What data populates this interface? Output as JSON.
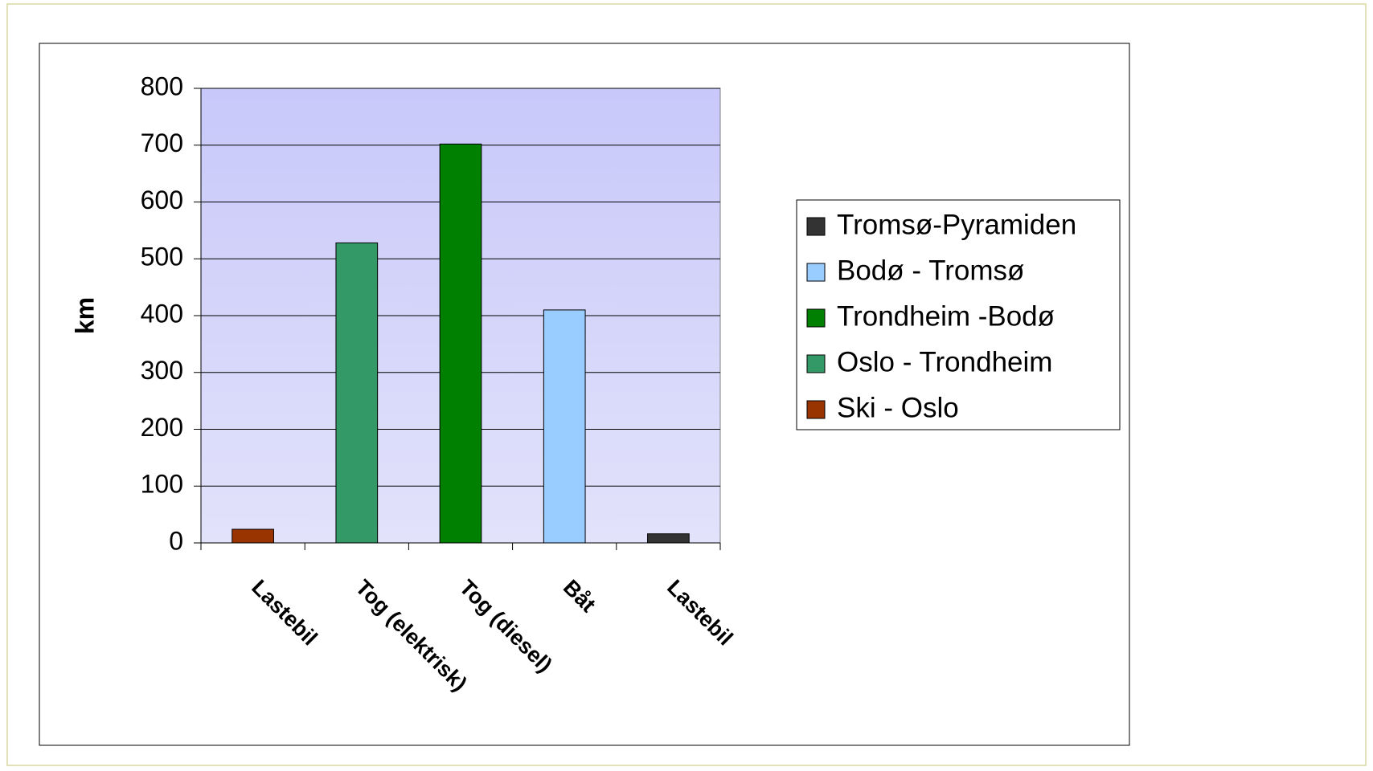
{
  "chart_data": {
    "type": "bar",
    "y_label": "km",
    "categories": [
      "Lastebil",
      "Tog (elektrisk)",
      "Tog (diesel)",
      "Båt",
      "Lastebil"
    ],
    "series": [
      {
        "name": "Tromsø-Pyramiden",
        "color": "#333333",
        "values": [
          null,
          null,
          null,
          null,
          16
        ]
      },
      {
        "name": "Bodø - Tromsø",
        "color": "#99ccff",
        "values": [
          null,
          null,
          null,
          410,
          null
        ]
      },
      {
        "name": "Trondheim -Bodø",
        "color": "#008000",
        "values": [
          null,
          null,
          702,
          null,
          null
        ]
      },
      {
        "name": "Oslo - Trondheim",
        "color": "#339966",
        "values": [
          null,
          528,
          null,
          null,
          null
        ]
      },
      {
        "name": "Ski - Oslo",
        "color": "#993300",
        "values": [
          24,
          null,
          null,
          null,
          null
        ]
      }
    ],
    "ylim": [
      0,
      800
    ],
    "yticks": [
      0,
      100,
      200,
      300,
      400,
      500,
      600,
      700,
      800
    ],
    "grid": true,
    "legend": "right"
  }
}
